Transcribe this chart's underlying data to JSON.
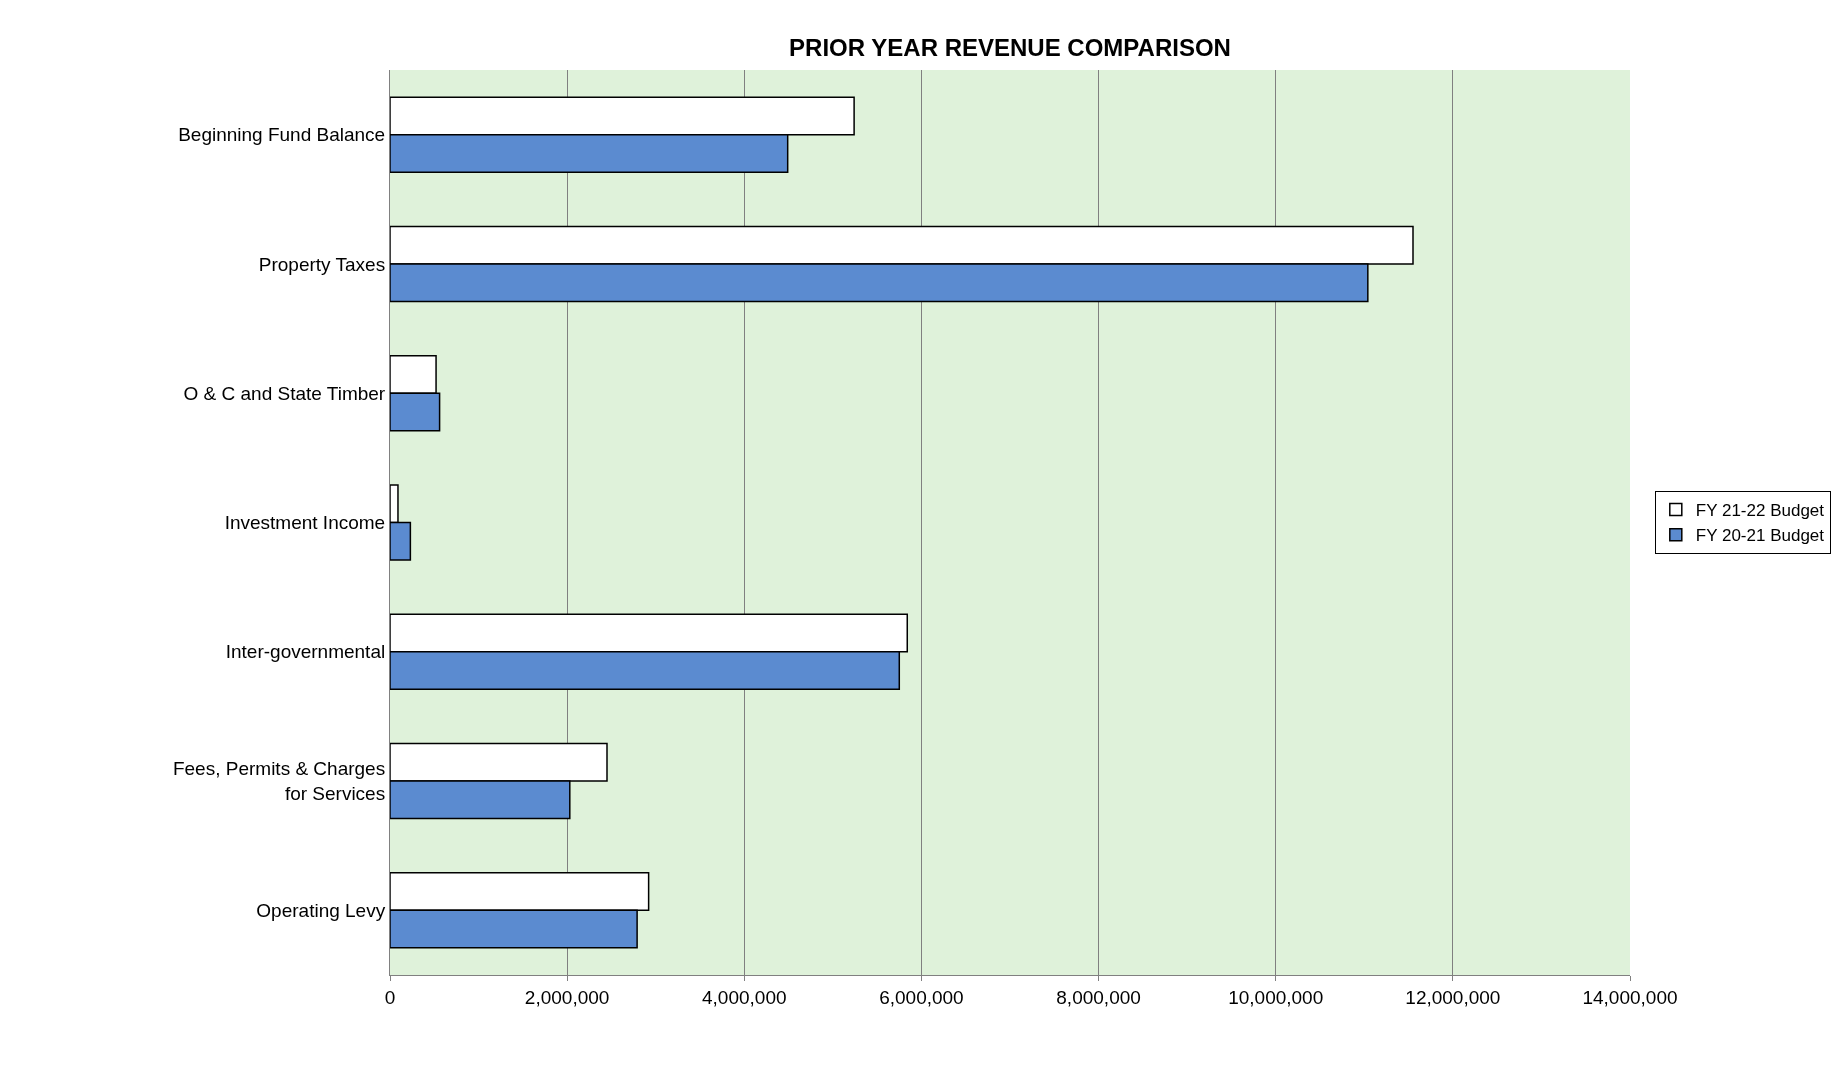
{
  "chart_data": {
    "type": "bar",
    "orientation": "horizontal",
    "title": "PRIOR YEAR REVENUE COMPARISON",
    "categories": [
      "Beginning Fund Balance",
      "Property Taxes",
      "O & C and State Timber",
      "Investment Income",
      "Inter-governmental",
      "Fees, Permits & Charges for Services",
      "Operating Levy"
    ],
    "series": [
      {
        "name": "FY 21-22 Budget",
        "color": "#ffffff",
        "values": [
          5240000,
          11550000,
          520000,
          90000,
          5840000,
          2450000,
          2920000
        ]
      },
      {
        "name": "FY 20-21 Budget",
        "color": "#5b8bd0",
        "values": [
          4490000,
          11040000,
          560000,
          230000,
          5750000,
          2030000,
          2790000
        ]
      }
    ],
    "xlim": [
      0,
      14000000
    ],
    "xticks": [
      0,
      {
        "value": 2000000,
        "label": "2,000,000"
      },
      {
        "value": 4000000,
        "label": "4,000,000"
      },
      {
        "value": 6000000,
        "label": "6,000,000"
      },
      {
        "value": 8000000,
        "label": "8,000,000"
      },
      {
        "value": 10000000,
        "label": "10,000,000"
      },
      {
        "value": 12000000,
        "label": "12,000,000"
      },
      {
        "value": 14000000,
        "label": "14,000,000"
      }
    ],
    "grid": "x",
    "legend": "right"
  }
}
